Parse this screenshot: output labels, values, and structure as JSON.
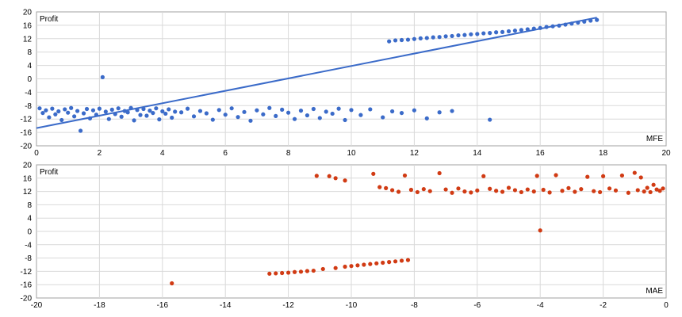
{
  "colors": {
    "mfe": "#3b6bc9",
    "mae": "#d13b14",
    "grid": "#d9d9d9",
    "frame": "#a0a0a0"
  },
  "chart_data": [
    {
      "type": "scatter",
      "xlabel": "MFE",
      "ylabel": "Profit",
      "xlim": [
        0,
        20
      ],
      "ylim": [
        -20,
        20
      ],
      "xticks": [
        "0",
        "2",
        "4",
        "6",
        "8",
        "10",
        "12",
        "14",
        "16",
        "18",
        "20"
      ],
      "yticks": [
        "-20",
        "-16",
        "-12",
        "-8",
        "-4",
        "0",
        "4",
        "8",
        "12",
        "16",
        "20"
      ],
      "grid": true,
      "trendline": {
        "x": [
          0,
          17.8
        ],
        "y": [
          -14.7,
          18.3
        ]
      },
      "points": [
        [
          0.1,
          -8.8
        ],
        [
          0.2,
          -10.2
        ],
        [
          0.3,
          -9.4
        ],
        [
          0.4,
          -11.5
        ],
        [
          0.5,
          -8.9
        ],
        [
          0.6,
          -10.6
        ],
        [
          0.7,
          -9.7
        ],
        [
          0.8,
          -12.3
        ],
        [
          0.9,
          -9.1
        ],
        [
          1.0,
          -10.1
        ],
        [
          1.1,
          -8.7
        ],
        [
          1.2,
          -11.2
        ],
        [
          1.3,
          -9.6
        ],
        [
          1.4,
          -15.5
        ],
        [
          1.5,
          -10.3
        ],
        [
          1.6,
          -9.0
        ],
        [
          1.7,
          -11.8
        ],
        [
          1.8,
          -9.4
        ],
        [
          1.9,
          -10.7
        ],
        [
          2.0,
          -8.9
        ],
        [
          2.1,
          0.5
        ],
        [
          2.2,
          -9.8
        ],
        [
          2.3,
          -12.0
        ],
        [
          2.4,
          -9.2
        ],
        [
          2.5,
          -10.5
        ],
        [
          2.6,
          -8.8
        ],
        [
          2.7,
          -11.3
        ],
        [
          2.8,
          -9.6
        ],
        [
          2.9,
          -10.0
        ],
        [
          3.0,
          -8.7
        ],
        [
          3.1,
          -12.4
        ],
        [
          3.2,
          -9.3
        ],
        [
          3.3,
          -10.8
        ],
        [
          3.4,
          -9.0
        ],
        [
          3.5,
          -11.0
        ],
        [
          3.6,
          -9.5
        ],
        [
          3.7,
          -10.2
        ],
        [
          3.8,
          -8.8
        ],
        [
          3.9,
          -12.1
        ],
        [
          4.0,
          -9.7
        ],
        [
          4.1,
          -10.4
        ],
        [
          4.2,
          -9.1
        ],
        [
          4.3,
          -11.6
        ],
        [
          4.4,
          -9.8
        ],
        [
          4.6,
          -10.0
        ],
        [
          4.8,
          -8.9
        ],
        [
          5.0,
          -11.2
        ],
        [
          5.2,
          -9.6
        ],
        [
          5.4,
          -10.3
        ],
        [
          5.6,
          -12.2
        ],
        [
          5.8,
          -9.3
        ],
        [
          6.0,
          -10.7
        ],
        [
          6.2,
          -8.8
        ],
        [
          6.4,
          -11.4
        ],
        [
          6.6,
          -9.9
        ],
        [
          6.8,
          -12.5
        ],
        [
          7.0,
          -9.4
        ],
        [
          7.2,
          -10.6
        ],
        [
          7.4,
          -8.7
        ],
        [
          7.6,
          -11.1
        ],
        [
          7.8,
          -9.2
        ],
        [
          8.0,
          -10.1
        ],
        [
          8.2,
          -12.0
        ],
        [
          8.4,
          -9.5
        ],
        [
          8.6,
          -10.9
        ],
        [
          8.8,
          -9.0
        ],
        [
          9.0,
          -11.7
        ],
        [
          9.2,
          -9.8
        ],
        [
          9.4,
          -10.4
        ],
        [
          9.6,
          -8.9
        ],
        [
          9.8,
          -12.3
        ],
        [
          10.0,
          -9.3
        ],
        [
          10.3,
          -10.8
        ],
        [
          10.6,
          -9.1
        ],
        [
          11.0,
          -11.5
        ],
        [
          11.3,
          -9.7
        ],
        [
          11.6,
          -10.2
        ],
        [
          12.0,
          -9.4
        ],
        [
          12.4,
          -11.8
        ],
        [
          12.8,
          -10.0
        ],
        [
          13.2,
          -9.6
        ],
        [
          14.4,
          -12.2
        ],
        [
          11.2,
          11.2
        ],
        [
          11.4,
          11.5
        ],
        [
          11.6,
          11.6
        ],
        [
          11.8,
          11.7
        ],
        [
          12.0,
          11.9
        ],
        [
          12.2,
          12.1
        ],
        [
          12.4,
          12.2
        ],
        [
          12.6,
          12.4
        ],
        [
          12.8,
          12.5
        ],
        [
          13.0,
          12.7
        ],
        [
          13.2,
          12.8
        ],
        [
          13.4,
          13.0
        ],
        [
          13.6,
          13.1
        ],
        [
          13.8,
          13.3
        ],
        [
          14.0,
          13.4
        ],
        [
          14.2,
          13.6
        ],
        [
          14.4,
          13.7
        ],
        [
          14.6,
          13.9
        ],
        [
          14.8,
          14.0
        ],
        [
          15.0,
          14.2
        ],
        [
          15.2,
          14.4
        ],
        [
          15.4,
          14.6
        ],
        [
          15.6,
          14.8
        ],
        [
          15.8,
          15.0
        ],
        [
          16.0,
          15.2
        ],
        [
          16.2,
          15.5
        ],
        [
          16.4,
          15.7
        ],
        [
          16.6,
          15.9
        ],
        [
          16.8,
          16.2
        ],
        [
          17.0,
          16.5
        ],
        [
          17.2,
          16.8
        ],
        [
          17.4,
          17.1
        ],
        [
          17.6,
          17.4
        ],
        [
          17.8,
          17.6
        ]
      ]
    },
    {
      "type": "scatter",
      "xlabel": "MAE",
      "ylabel": "Profit",
      "xlim": [
        -20,
        0
      ],
      "ylim": [
        -20,
        20
      ],
      "xticks": [
        "-20",
        "-18",
        "-16",
        "-14",
        "-12",
        "-10",
        "-8",
        "-6",
        "-4",
        "-2",
        "0"
      ],
      "yticks": [
        "-20",
        "-16",
        "-12",
        "-8",
        "-4",
        "0",
        "4",
        "8",
        "12",
        "16",
        "20"
      ],
      "grid": true,
      "points": [
        [
          -15.7,
          -15.6
        ],
        [
          -4.0,
          0.3
        ],
        [
          -11.1,
          16.7
        ],
        [
          -10.7,
          16.6
        ],
        [
          -10.5,
          16.0
        ],
        [
          -10.2,
          15.3
        ],
        [
          -9.3,
          17.3
        ],
        [
          -9.1,
          13.3
        ],
        [
          -8.9,
          13.0
        ],
        [
          -8.7,
          12.4
        ],
        [
          -8.5,
          11.9
        ],
        [
          -8.3,
          16.8
        ],
        [
          -8.1,
          12.5
        ],
        [
          -7.9,
          11.8
        ],
        [
          -7.7,
          12.7
        ],
        [
          -7.5,
          12.1
        ],
        [
          -7.2,
          17.5
        ],
        [
          -7.0,
          12.6
        ],
        [
          -6.8,
          11.6
        ],
        [
          -6.6,
          12.9
        ],
        [
          -6.4,
          12.0
        ],
        [
          -6.2,
          11.7
        ],
        [
          -6.0,
          12.3
        ],
        [
          -5.8,
          16.6
        ],
        [
          -5.6,
          12.8
        ],
        [
          -5.4,
          12.2
        ],
        [
          -5.2,
          11.9
        ],
        [
          -5.0,
          13.1
        ],
        [
          -4.8,
          12.4
        ],
        [
          -4.6,
          11.8
        ],
        [
          -4.4,
          12.6
        ],
        [
          -4.2,
          12.0
        ],
        [
          -4.1,
          16.7
        ],
        [
          -3.9,
          12.5
        ],
        [
          -3.7,
          11.7
        ],
        [
          -3.5,
          16.9
        ],
        [
          -3.3,
          12.2
        ],
        [
          -3.1,
          13.0
        ],
        [
          -2.9,
          11.9
        ],
        [
          -2.7,
          12.7
        ],
        [
          -2.5,
          16.4
        ],
        [
          -2.3,
          12.1
        ],
        [
          -2.1,
          11.8
        ],
        [
          -2.0,
          16.6
        ],
        [
          -1.8,
          12.9
        ],
        [
          -1.6,
          12.3
        ],
        [
          -1.4,
          16.8
        ],
        [
          -1.2,
          11.6
        ],
        [
          -1.0,
          17.6
        ],
        [
          -0.9,
          12.4
        ],
        [
          -0.8,
          16.2
        ],
        [
          -0.7,
          12.0
        ],
        [
          -0.6,
          13.1
        ],
        [
          -0.5,
          11.8
        ],
        [
          -0.4,
          14.0
        ],
        [
          -0.3,
          12.6
        ],
        [
          -0.2,
          12.2
        ],
        [
          -0.1,
          12.9
        ],
        [
          -12.6,
          -12.7
        ],
        [
          -12.4,
          -12.6
        ],
        [
          -12.2,
          -12.5
        ],
        [
          -12.0,
          -12.4
        ],
        [
          -11.8,
          -12.2
        ],
        [
          -11.6,
          -12.1
        ],
        [
          -11.4,
          -11.9
        ],
        [
          -11.2,
          -11.8
        ],
        [
          -10.9,
          -11.3
        ],
        [
          -10.5,
          -11.0
        ],
        [
          -10.2,
          -10.6
        ],
        [
          -10.0,
          -10.4
        ],
        [
          -9.8,
          -10.2
        ],
        [
          -9.6,
          -10.0
        ],
        [
          -9.4,
          -9.8
        ],
        [
          -9.2,
          -9.6
        ],
        [
          -9.0,
          -9.4
        ],
        [
          -8.8,
          -9.2
        ],
        [
          -8.6,
          -9.0
        ],
        [
          -8.4,
          -8.8
        ],
        [
          -8.2,
          -8.6
        ]
      ]
    }
  ]
}
